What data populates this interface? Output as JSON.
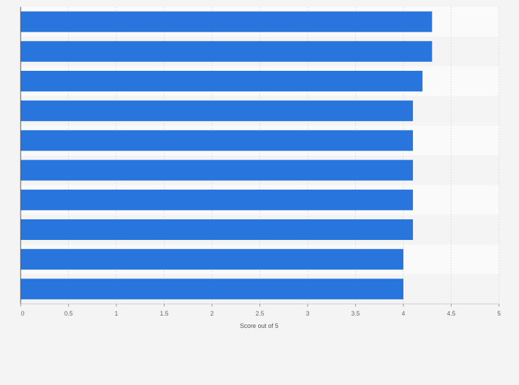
{
  "chart_data": {
    "type": "bar",
    "orientation": "horizontal",
    "title": "",
    "xlabel": "Score out of 5",
    "ylabel": "",
    "categories": [
      "",
      "",
      "",
      "",
      "",
      "",
      "",
      "",
      "",
      ""
    ],
    "values": [
      4.3,
      4.3,
      4.2,
      4.1,
      4.1,
      4.1,
      4.1,
      4.1,
      4.0,
      4.0
    ],
    "xlim": [
      0,
      5
    ],
    "xticks": [
      0,
      0.5,
      1,
      1.5,
      2,
      2.5,
      3,
      3.5,
      4,
      4.5,
      5
    ],
    "xtick_labels": [
      "0",
      "0.5",
      "1",
      "1.5",
      "2",
      "2.5",
      "3",
      "3.5",
      "4",
      "4.5",
      "5"
    ],
    "grid": "vertical",
    "legend": "none",
    "colors": {
      "bar": "#2876dd",
      "background": "#f4f4f4",
      "band_light": "#fafafa",
      "band_dark": "#f4f4f4",
      "grid": "#dedede",
      "axis": "#555555"
    }
  }
}
